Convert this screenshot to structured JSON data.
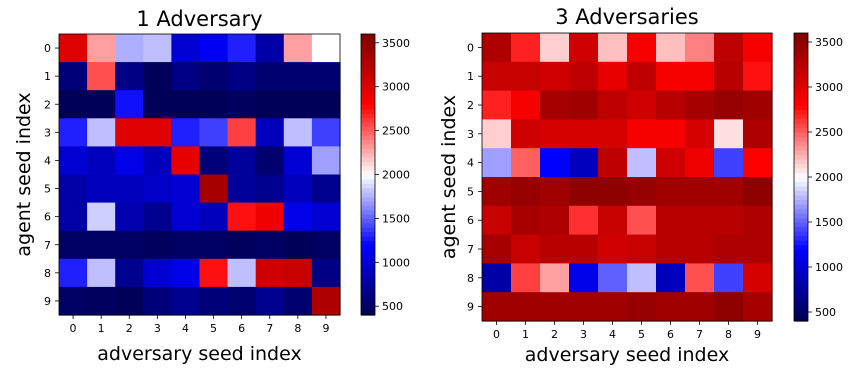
{
  "chart_data": [
    {
      "type": "heatmap",
      "title": "1 Adversary",
      "xlabel": "adversary seed index",
      "ylabel": "agent seed index",
      "x_ticks": [
        "0",
        "1",
        "2",
        "3",
        "4",
        "5",
        "6",
        "7",
        "8",
        "9"
      ],
      "y_ticks": [
        "0",
        "1",
        "2",
        "3",
        "4",
        "5",
        "6",
        "7",
        "8",
        "9"
      ],
      "colormap": "seismic",
      "vmin": 400,
      "vmax": 3600,
      "colorbar_ticks": [
        "500",
        "1000",
        "1500",
        "2000",
        "2500",
        "3000",
        "3500"
      ],
      "values": [
        [
          3000,
          2300,
          1750,
          1800,
          1000,
          1150,
          1300,
          800,
          2300,
          2000
        ],
        [
          600,
          2550,
          650,
          450,
          650,
          550,
          650,
          550,
          550,
          550
        ],
        [
          450,
          450,
          1250,
          450,
          450,
          450,
          480,
          450,
          450,
          450
        ],
        [
          1300,
          1800,
          3000,
          3000,
          1300,
          1400,
          2600,
          900,
          1800,
          1400
        ],
        [
          1000,
          900,
          1100,
          900,
          2950,
          600,
          750,
          550,
          1000,
          1700
        ],
        [
          800,
          900,
          900,
          950,
          1000,
          3350,
          750,
          700,
          900,
          700
        ],
        [
          800,
          1850,
          850,
          700,
          1000,
          900,
          2750,
          2900,
          1100,
          1000
        ],
        [
          500,
          500,
          500,
          480,
          500,
          500,
          480,
          500,
          450,
          500
        ],
        [
          1300,
          1800,
          700,
          1000,
          1100,
          2750,
          1800,
          3100,
          3150,
          650
        ],
        [
          500,
          480,
          450,
          600,
          700,
          600,
          550,
          700,
          550,
          3300
        ]
      ]
    },
    {
      "type": "heatmap",
      "title": "3 Adversaries",
      "xlabel": "adversary seed index",
      "ylabel": "agent seed index",
      "x_ticks": [
        "0",
        "1",
        "2",
        "3",
        "4",
        "5",
        "6",
        "7",
        "8",
        "9"
      ],
      "y_ticks": [
        "0",
        "1",
        "2",
        "3",
        "4",
        "5",
        "6",
        "7",
        "8",
        "9"
      ],
      "colormap": "seismic",
      "vmin": 400,
      "vmax": 3600,
      "colorbar_ticks": [
        "500",
        "1000",
        "1500",
        "2000",
        "2500",
        "3000",
        "3500"
      ],
      "values": [
        [
          3300,
          2700,
          2150,
          3100,
          2200,
          2850,
          2200,
          2400,
          3200,
          2850
        ],
        [
          3150,
          3150,
          3100,
          3200,
          2950,
          3200,
          2850,
          2850,
          3250,
          2750
        ],
        [
          2700,
          2850,
          3350,
          3400,
          3200,
          3100,
          3250,
          3350,
          3450,
          3400
        ],
        [
          2150,
          3100,
          3050,
          3050,
          3050,
          2850,
          2850,
          3050,
          2100,
          3300
        ],
        [
          1700,
          2500,
          1200,
          900,
          3200,
          1800,
          3100,
          2900,
          1400,
          2800
        ],
        [
          3400,
          3450,
          3400,
          3500,
          3500,
          3450,
          3400,
          3400,
          3400,
          3500
        ],
        [
          3150,
          3350,
          3300,
          2650,
          3150,
          2550,
          3250,
          3250,
          3250,
          3300
        ],
        [
          3350,
          3150,
          3250,
          3250,
          3100,
          3150,
          3250,
          3250,
          3300,
          3300
        ],
        [
          800,
          2600,
          2300,
          1100,
          1500,
          1800,
          900,
          2550,
          1400,
          3050
        ],
        [
          3400,
          3400,
          3400,
          3400,
          3400,
          3450,
          3400,
          3400,
          3500,
          3350
        ]
      ]
    }
  ]
}
